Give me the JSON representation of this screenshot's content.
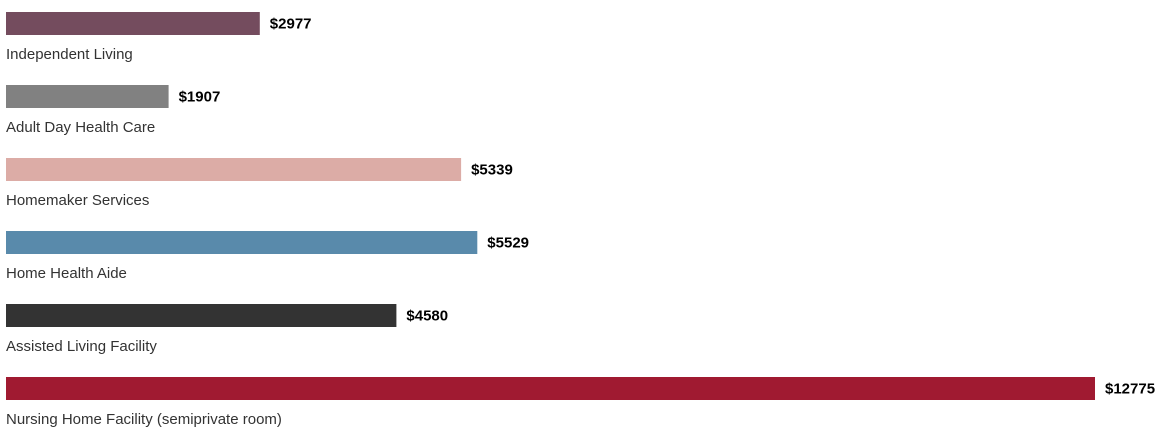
{
  "chart_data": {
    "type": "bar",
    "orientation": "horizontal",
    "title": "",
    "xlabel": "",
    "ylabel": "",
    "value_prefix": "$",
    "grid": false,
    "legend": "none",
    "categories": [
      "Independent Living",
      "Adult Day Health Care",
      "Homemaker Services",
      "Home Health Aide",
      "Assisted Living Facility",
      "Nursing Home Facility (semiprivate room)"
    ],
    "values": [
      2977,
      1907,
      5339,
      5529,
      4580,
      12775
    ],
    "value_labels": [
      "$2977",
      "$1907",
      "$5339",
      "$5529",
      "$4580",
      "$12775"
    ],
    "colors": [
      "#744c5e",
      "#818181",
      "#dcaca6",
      "#598aab",
      "#333333",
      "#a01a31"
    ]
  }
}
